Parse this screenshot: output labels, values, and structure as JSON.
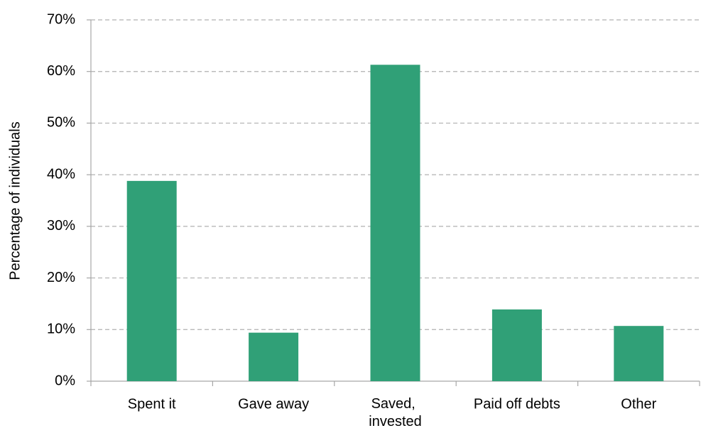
{
  "chart_data": {
    "type": "bar",
    "y_label": "Percentage of individuals",
    "categories": [
      "Spent it",
      "Gave away",
      "Saved, invested",
      "Paid off debts",
      "Other"
    ],
    "values": [
      38.8,
      9.4,
      61.3,
      13.9,
      10.7
    ],
    "color": "#30a077",
    "ylim": [
      0,
      70
    ],
    "yticks": [
      {
        "value": 0,
        "label": "0%"
      },
      {
        "value": 10,
        "label": "10%"
      },
      {
        "value": 20,
        "label": "20%"
      },
      {
        "value": 30,
        "label": "30%"
      },
      {
        "value": 40,
        "label": "40%"
      },
      {
        "value": 50,
        "label": "50%"
      },
      {
        "value": 60,
        "label": "60%"
      },
      {
        "value": 70,
        "label": "70%"
      }
    ],
    "grid": true
  }
}
